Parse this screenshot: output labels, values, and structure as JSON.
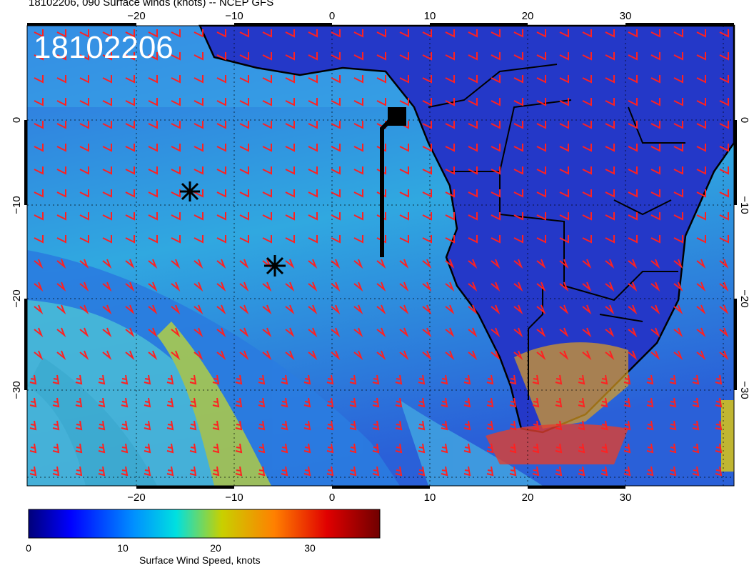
{
  "title": "18102206, 090 Surface winds (knots) -- NCEP GFS",
  "overlay_date": "18102206",
  "map": {
    "lon_range": [
      -30,
      40
    ],
    "lat_range": [
      -40,
      10
    ],
    "lon_ticks": [
      "−20",
      "−10",
      "0",
      "10",
      "20",
      "30"
    ],
    "lat_ticks": [
      "0",
      "−10",
      "−20",
      "−30"
    ],
    "wind_barb_color": "#ff2020",
    "coastline_color": "#000000",
    "markers": [
      {
        "name": "asterisk",
        "lon": -14,
        "lat": -8
      },
      {
        "name": "asterisk",
        "lon": -6,
        "lat": -16
      },
      {
        "name": "square-with-line",
        "lon": 6.5,
        "lat": 0.5
      }
    ]
  },
  "colorbar": {
    "label": "Surface Wind Speed, knots",
    "ticks": [
      "0",
      "10",
      "20",
      "30"
    ],
    "range": [
      0,
      37
    ],
    "colors": [
      "#000080",
      "#0000ff",
      "#0080ff",
      "#00e0e0",
      "#c8c800",
      "#ff8000",
      "#ff0000",
      "#800000"
    ]
  }
}
